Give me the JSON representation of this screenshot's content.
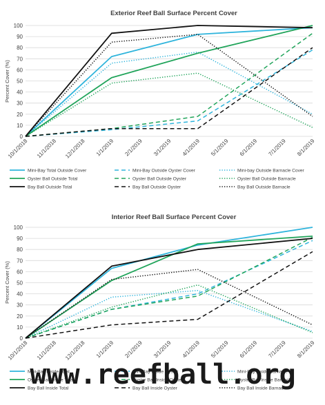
{
  "watermark": "www.reefball.org",
  "colors": {
    "mini": "#2eb4dc",
    "oyster": "#20a45a",
    "bay": "#111111",
    "grid": "#d9d9d9",
    "text": "#404040"
  },
  "chart_data": [
    {
      "type": "line",
      "title": "Exterior Reef Ball Surface Percent Cover",
      "ylabel": "Percent Cover (%)",
      "xlabel": "",
      "ylim": [
        0,
        100
      ],
      "yticks": [
        0,
        10,
        20,
        30,
        40,
        50,
        60,
        70,
        80,
        90,
        100
      ],
      "grid": true,
      "legend_position": "bottom",
      "categories": [
        "10/1/2018",
        "11/1/2018",
        "12/1/2018",
        "1/1/2019",
        "2/1/2019",
        "3/1/2019",
        "4/1/2019",
        "5/1/2019",
        "6/1/2019",
        "7/1/2019",
        "8/1/2019"
      ],
      "x_positions": [
        0,
        1,
        2,
        3,
        4,
        5,
        6,
        7,
        8,
        9,
        10
      ],
      "series": [
        {
          "name": "Mini-Bay Total Outside Cover",
          "color": "#2eb4dc",
          "dash": "solid",
          "x": [
            0,
            3,
            6,
            10
          ],
          "values": [
            0,
            72,
            92,
            98
          ]
        },
        {
          "name": "Mini-Bay Outside Oyster Cover",
          "color": "#2eb4dc",
          "dash": "dashed",
          "x": [
            0,
            3,
            6,
            10
          ],
          "values": [
            0,
            6,
            14,
            78
          ]
        },
        {
          "name": "Mini-bay Outside Barnacle Cover",
          "color": "#2eb4dc",
          "dash": "dotted",
          "x": [
            0,
            3,
            6,
            10
          ],
          "values": [
            0,
            66,
            76,
            20
          ]
        },
        {
          "name": "Oyster Ball Outside Total",
          "color": "#20a45a",
          "dash": "solid",
          "x": [
            0,
            3,
            6,
            10
          ],
          "values": [
            0,
            53,
            75,
            100
          ]
        },
        {
          "name": "Oyster Ball Outside Oyster",
          "color": "#20a45a",
          "dash": "dashed",
          "x": [
            0,
            3,
            6,
            10
          ],
          "values": [
            0,
            7,
            18,
            93
          ]
        },
        {
          "name": "Oyster Ball Outside Barnacle",
          "color": "#20a45a",
          "dash": "dotted",
          "x": [
            0,
            3,
            6,
            10
          ],
          "values": [
            0,
            48,
            57,
            8
          ]
        },
        {
          "name": "Bay Ball Outside Total",
          "color": "#111111",
          "dash": "solid",
          "x": [
            0,
            3,
            6,
            10
          ],
          "values": [
            0,
            93,
            100,
            98
          ]
        },
        {
          "name": "Bay Ball Outside Oyster",
          "color": "#111111",
          "dash": "dashed",
          "x": [
            0,
            3,
            6,
            10
          ],
          "values": [
            0,
            7,
            7,
            80
          ]
        },
        {
          "name": "Bay Ball Outside Barnacle",
          "color": "#111111",
          "dash": "dotted",
          "x": [
            0,
            3,
            6,
            10
          ],
          "values": [
            0,
            85,
            92,
            18
          ]
        }
      ]
    },
    {
      "type": "line",
      "title": "Interior Reef Ball Surface Percent Cover",
      "ylabel": "Percent Cover (%)",
      "xlabel": "",
      "ylim": [
        0,
        100
      ],
      "yticks": [
        0,
        10,
        20,
        30,
        40,
        50,
        60,
        70,
        80,
        90,
        100
      ],
      "grid": true,
      "legend_position": "bottom",
      "categories": [
        "10/1/2018",
        "11/1/2018",
        "12/1/2018",
        "1/1/2019",
        "2/1/2019",
        "3/1/2019",
        "4/1/2019",
        "5/1/2019",
        "6/1/2019",
        "7/1/2019",
        "8/1/2019"
      ],
      "x_positions": [
        0,
        1,
        2,
        3,
        4,
        5,
        6,
        7,
        8,
        9,
        10
      ],
      "series": [
        {
          "name": "Mini-Bay Inside Total",
          "color": "#2eb4dc",
          "dash": "solid",
          "x": [
            0,
            3,
            6,
            10
          ],
          "values": [
            0,
            63,
            84,
            100
          ]
        },
        {
          "name": "Mini-Bay Inside Oyster",
          "color": "#2eb4dc",
          "dash": "dashed",
          "x": [
            0,
            3,
            6,
            10
          ],
          "values": [
            0,
            26,
            40,
            88
          ]
        },
        {
          "name": "Mini-Bay Inside Barnacle",
          "color": "#2eb4dc",
          "dash": "dotted",
          "x": [
            0,
            3,
            6,
            10
          ],
          "values": [
            0,
            37,
            43,
            6
          ]
        },
        {
          "name": "Oyster Ball Inside Total",
          "color": "#20a45a",
          "dash": "solid",
          "x": [
            0,
            3,
            6,
            10
          ],
          "values": [
            0,
            52,
            85,
            92
          ]
        },
        {
          "name": "Oyster Ball Inside Oyster",
          "color": "#20a45a",
          "dash": "dashed",
          "x": [
            0,
            3,
            6,
            10
          ],
          "values": [
            0,
            26,
            38,
            91
          ]
        },
        {
          "name": "Oyster Ball Inside Barnacle",
          "color": "#20a45a",
          "dash": "dotted",
          "x": [
            0,
            3,
            6,
            10
          ],
          "values": [
            0,
            28,
            48,
            5
          ]
        },
        {
          "name": "Bay Ball Inside Total",
          "color": "#111111",
          "dash": "solid",
          "x": [
            0,
            3,
            6,
            10
          ],
          "values": [
            0,
            65,
            80,
            90
          ]
        },
        {
          "name": "Bay Ball Inside Oyster",
          "color": "#111111",
          "dash": "dashed",
          "x": [
            0,
            3,
            6,
            10
          ],
          "values": [
            0,
            12,
            17,
            78
          ]
        },
        {
          "name": "Bay Ball Inside Barnacle",
          "color": "#111111",
          "dash": "dotted",
          "x": [
            0,
            3,
            6,
            10
          ],
          "values": [
            0,
            53,
            62,
            12
          ]
        }
      ]
    }
  ]
}
